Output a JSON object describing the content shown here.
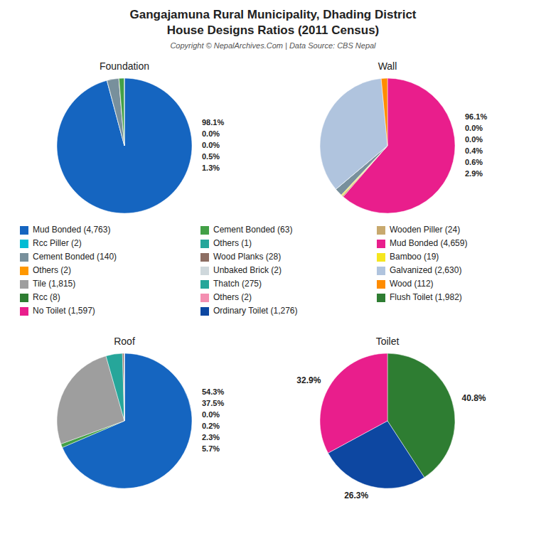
{
  "title": "Gangajamuna Rural Municipality, Dhading District",
  "subtitle": "House Designs Ratios (2011 Census)",
  "annotations": [
    "Copyright © NepalArchives.Com | Data Source: CBS Nepal"
  ],
  "series": [
    {
      "name": "Mud Bonded (4,763)",
      "color": "#1565c0"
    },
    {
      "name": "Rcc Piller (2)",
      "color": "#00bcd4"
    },
    {
      "name": "Cement Bonded (140)",
      "color": "#78909c"
    },
    {
      "name": "Others (2)",
      "color": "#ff9800"
    },
    {
      "name": "Tile (1,815)",
      "color": "#9e9e9e"
    },
    {
      "name": "Rcc (8)",
      "color": "#2e7d32"
    },
    {
      "name": "No Toilet (1,597)",
      "color": "#e91e8c"
    },
    {
      "name": "Cement Bonded (63)",
      "color": "#43a047"
    },
    {
      "name": "Others (1)",
      "color": "#26a69a"
    },
    {
      "name": "Wood Planks (28)",
      "color": "#8d6e63"
    },
    {
      "name": "Unbaked Brick (2)",
      "color": "#cfd8dc"
    },
    {
      "name": "Thatch (275)",
      "color": "#26a69a"
    },
    {
      "name": "Others (2)",
      "color": "#f48fb1"
    },
    {
      "name": "Ordinary Toilet (1,276)",
      "color": "#0d47a1"
    },
    {
      "name": "Wooden Piller (24)",
      "color": "#c8a96e"
    },
    {
      "name": "Mud Bonded (4,659)",
      "color": "#e91e8c"
    },
    {
      "name": "Bamboo (19)",
      "color": "#f5e61e"
    },
    {
      "name": "Galvanized (2,630)",
      "color": "#b0c4de"
    },
    {
      "name": "Wood (112)",
      "color": "#ff8c00"
    },
    {
      "name": "Flush Toilet (1,982)",
      "color": "#2e7d32"
    }
  ],
  "chart_data": [
    {
      "type": "pie",
      "title": "Foundation",
      "values": [
        4763,
        2,
        140,
        2,
        63,
        1
      ],
      "colors": [
        "#1565c0",
        "#00bcd4",
        "#78909c",
        "#ff9800",
        "#43a047",
        "#00897b"
      ],
      "annotations": [
        "98.1%",
        "0.0%",
        "0.0%",
        "0.5%",
        "1.3%"
      ]
    },
    {
      "type": "pie",
      "title": "Wall",
      "values": [
        4659,
        24,
        2,
        19,
        140,
        2,
        2630,
        112
      ],
      "colors": [
        "#e91e8c",
        "#c8a96e",
        "#00bcd4",
        "#f5e61e",
        "#78909c",
        "#00bcd4",
        "#b0c4de",
        "#ff8c00"
      ],
      "annotations": [
        "96.1%",
        "0.0%",
        "0.0%",
        "0.4%",
        "0.6%",
        "2.9%"
      ]
    },
    {
      "type": "pie",
      "title": "Roof",
      "values": [
        4763,
        63,
        1815,
        275,
        28,
        2,
        2
      ],
      "colors": [
        "#1565c0",
        "#43a047",
        "#9e9e9e",
        "#26a69a",
        "#8d6e63",
        "#cfd8dc",
        "#f48fb1"
      ],
      "annotations": [
        "54.3%",
        "37.5%",
        "0.0%",
        "0.2%",
        "2.3%",
        "5.7%"
      ]
    },
    {
      "type": "pie",
      "title": "Toilet",
      "values": [
        40.8,
        26.3,
        32.9
      ],
      "value_labels": [
        "40.8%",
        "26.3%",
        "32.9%"
      ],
      "colors": [
        "#2e7d32",
        "#0d47a1",
        "#e91e8c"
      ],
      "data_labels": true
    }
  ]
}
